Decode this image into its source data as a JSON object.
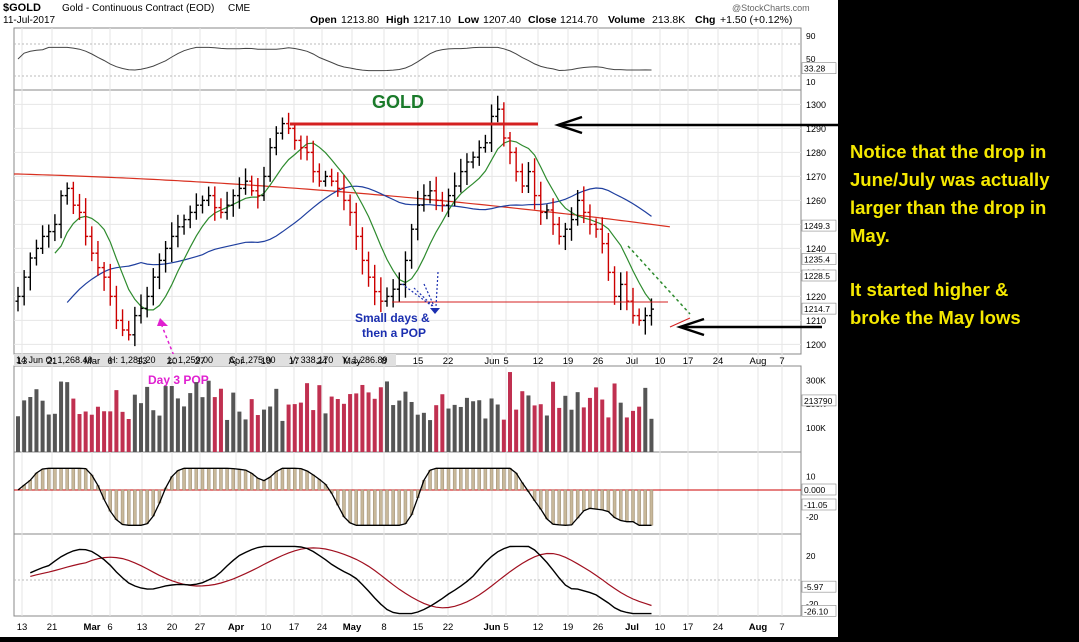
{
  "header": {
    "symbol": "$GOLD",
    "name": "Gold - Continuous Contract (EOD)",
    "exchange": "CME",
    "date": "11-Jul-2017",
    "open_label": "Open",
    "open": "1213.80",
    "high_label": "High",
    "high": "1217.10",
    "low_label": "Low",
    "low": "1207.40",
    "close_label": "Close",
    "close": "1214.70",
    "volume_label": "Volume",
    "volume": "213.8K",
    "chg_label": "Chg",
    "chg": "+1.50 (+0.12%)",
    "watermark": "@StockCharts.com"
  },
  "annotations": {
    "gold_title": "GOLD",
    "small_days_line1": "Small days &",
    "small_days_line2": "then a POP",
    "day3_pop": "Day 3 POP"
  },
  "info_bar": {
    "date": "14 Jun O: 1,268.40",
    "high": "H: 1,284.20",
    "low": "L: 1,259.00",
    "close": "C: 1,275.90",
    "volume": "V: 338,170",
    "y": "Y: 1,286.89"
  },
  "notes": {
    "line1": "Notice that the drop in",
    "line2": "June/July was actually",
    "line3": "larger than the drop in",
    "line4": "May.",
    "line5": "It started higher &",
    "line6": "broke the May lows"
  },
  "colors": {
    "up_bar": "#000000",
    "down_bar": "#cc0000",
    "sma_fast": "#2e8b2e",
    "sma_mid": "#1f3f9f",
    "sma_slow": "#d83020",
    "gold_title": "#1a7a2a",
    "small_days": "#1b2fb0",
    "day3_pop": "#e020d0",
    "note_text": "#f5e800"
  },
  "chart_data": {
    "type": "ohlc",
    "x_tick_labels": [
      "13",
      "21",
      "Mar",
      "6",
      "13",
      "20",
      "27",
      "Apr",
      "10",
      "17",
      "24",
      "May",
      "8",
      "15",
      "22",
      "Jun",
      "5",
      "12",
      "19",
      "26",
      "Jul",
      "10",
      "17",
      "24",
      "Aug",
      "7"
    ],
    "y_ticks": [
      "1200",
      "1210",
      "1220",
      "1230",
      "1240",
      "1250",
      "1260",
      "1270",
      "1280",
      "1290",
      "1300"
    ],
    "ylim": [
      1196,
      1306
    ],
    "last_value_labels": {
      "sma_slow": "1249.3",
      "price_line": "1235.4",
      "sma_fast": "1228.5",
      "close": "1214.7"
    },
    "resistance_level": 1300,
    "support_level": 1214,
    "closes": [
      1220,
      1228,
      1236,
      1240,
      1245,
      1247,
      1250,
      1262,
      1265,
      1258,
      1255,
      1245,
      1238,
      1232,
      1228,
      1220,
      1210,
      1206,
      1204,
      1212,
      1215,
      1220,
      1228,
      1235,
      1240,
      1245,
      1249,
      1252,
      1255,
      1258,
      1260,
      1262,
      1257,
      1255,
      1258,
      1262,
      1265,
      1268,
      1264,
      1262,
      1270,
      1282,
      1288,
      1292,
      1290,
      1285,
      1282,
      1280,
      1272,
      1268,
      1270,
      1268,
      1265,
      1260,
      1255,
      1245,
      1235,
      1228,
      1222,
      1218,
      1220,
      1223,
      1225,
      1235,
      1248,
      1258,
      1262,
      1264,
      1260,
      1258,
      1262,
      1266,
      1272,
      1276,
      1278,
      1282,
      1284,
      1295,
      1298,
      1286,
      1280,
      1272,
      1266,
      1272,
      1262,
      1255,
      1256,
      1250,
      1245,
      1248,
      1252,
      1260,
      1255,
      1250,
      1248,
      1242,
      1230,
      1220,
      1225,
      1218,
      1212,
      1210,
      1212,
      1214.7
    ],
    "volume": {
      "y_ticks": [
        "100K",
        "200K",
        "300K"
      ],
      "last_label": "213790",
      "ylim": [
        0,
        360000
      ]
    },
    "momentum_histogram": {
      "y_ticks": [
        "-20",
        "10"
      ],
      "zero_label": "0.000",
      "last_label": "-11.05",
      "ylim": [
        -28,
        18
      ]
    },
    "oscillator_top": {
      "y_ticks": [
        "10",
        "50",
        "90"
      ],
      "last_label": "33.28",
      "ylim": [
        0,
        100
      ]
    },
    "oscillator_bottom": {
      "y_ticks": [
        "-20",
        "20"
      ],
      "labels": [
        "-5.97",
        "-26.10"
      ],
      "ylim": [
        -30,
        30
      ]
    }
  }
}
